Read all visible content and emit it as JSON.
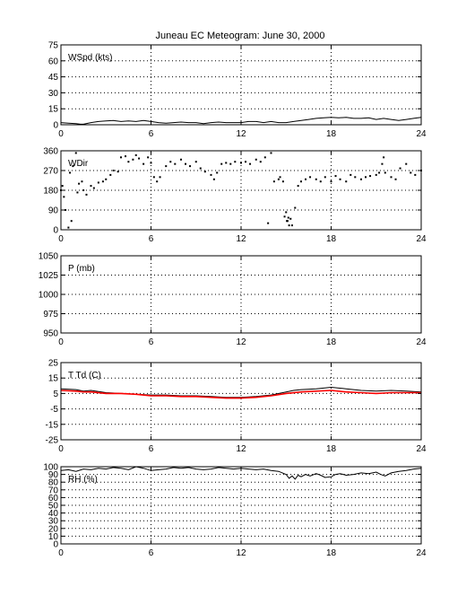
{
  "title": "Juneau EC Meteogram:       June 30, 2000",
  "colors": {
    "background": "#ffffff",
    "axes": "#000000",
    "grid": "#000000",
    "temperature": "#000000",
    "dewpoint": "#ff0000"
  },
  "chart_data": [
    {
      "type": "line",
      "id": "wspd",
      "label": "WSpd (kts)",
      "xlim": [
        0,
        24
      ],
      "xticks": [
        0,
        6,
        12,
        18,
        24
      ],
      "ylim": [
        0,
        75
      ],
      "yticks": [
        0,
        15,
        30,
        45,
        60,
        75
      ],
      "grid": true,
      "series": [
        {
          "color": "#000000",
          "style": "line",
          "x": [
            0,
            0.5,
            1,
            1.3,
            1.5,
            2,
            2.5,
            3,
            3.5,
            4,
            4.5,
            5,
            5.5,
            6,
            6.5,
            7,
            7.5,
            8,
            8.5,
            9,
            9.5,
            10,
            10.5,
            11,
            11.5,
            12,
            12.5,
            13,
            13.5,
            14,
            14.5,
            15,
            15.5,
            16,
            16.5,
            17,
            17.5,
            18,
            18.5,
            19,
            19.5,
            20,
            20.5,
            21,
            21.5,
            22,
            22.5,
            23,
            23.5,
            24
          ],
          "y": [
            2,
            1.5,
            1,
            0.5,
            0.5,
            2,
            3,
            3.5,
            4,
            3,
            3.5,
            3,
            4,
            3,
            2,
            1.5,
            2,
            2.5,
            2,
            2,
            1,
            2,
            2.5,
            2,
            2,
            2,
            3,
            3,
            2,
            3,
            2,
            2,
            3,
            4,
            5,
            6,
            6.5,
            7,
            6.5,
            7,
            6,
            6,
            6.5,
            5,
            6,
            5,
            4,
            5,
            6,
            7
          ]
        }
      ]
    },
    {
      "type": "scatter",
      "id": "wdir",
      "label": "WDir",
      "xlim": [
        0,
        24
      ],
      "xticks": [
        0,
        6,
        12,
        18,
        24
      ],
      "ylim": [
        0,
        360
      ],
      "yticks": [
        0,
        90,
        180,
        270,
        360
      ],
      "grid": true,
      "series": [
        {
          "color": "#000000",
          "style": "dots",
          "x": [
            0,
            0.1,
            0.2,
            0.3,
            0.5,
            0.7,
            1,
            1.2,
            1.4,
            1.5,
            1.7,
            2,
            2.2,
            2.5,
            2.8,
            3,
            3.3,
            3.5,
            3.8,
            4,
            4.3,
            4.5,
            4.8,
            5,
            5.2,
            5.5,
            5.8,
            6,
            6.2,
            6.4,
            6.6,
            7,
            7.3,
            7.6,
            8,
            8.3,
            8.6,
            9,
            9.3,
            9.6,
            10,
            10.2,
            10.4,
            10.7,
            11,
            11.3,
            11.6,
            12,
            12.3,
            12.6,
            13,
            13.3,
            13.6,
            14,
            14.2,
            14.5,
            14.6,
            14.8,
            15,
            15.1,
            15.2,
            15.3,
            15.4,
            15.6,
            15.8,
            16,
            16.3,
            16.6,
            17,
            17.3,
            17.6,
            18,
            18.3,
            18.6,
            19,
            19.3,
            19.6,
            20,
            20.3,
            20.6,
            21,
            21.2,
            21.4,
            21.6,
            22,
            22.3,
            22.6,
            23,
            23.3,
            23.6,
            24,
            0.6,
            0.8,
            1.1,
            13.8,
            14.9,
            15.05,
            15.15,
            21.5
          ],
          "y": [
            180,
            200,
            150,
            90,
            10,
            40,
            350,
            210,
            220,
            180,
            160,
            200,
            190,
            215,
            220,
            230,
            250,
            270,
            265,
            330,
            335,
            310,
            320,
            340,
            325,
            300,
            330,
            305,
            240,
            220,
            240,
            290,
            310,
            300,
            320,
            300,
            290,
            310,
            280,
            265,
            250,
            230,
            260,
            300,
            305,
            300,
            310,
            305,
            310,
            300,
            320,
            310,
            330,
            350,
            220,
            230,
            240,
            220,
            80,
            40,
            20,
            50,
            20,
            100,
            200,
            220,
            230,
            240,
            230,
            220,
            240,
            220,
            245,
            230,
            220,
            250,
            240,
            230,
            240,
            245,
            250,
            260,
            300,
            260,
            240,
            230,
            280,
            300,
            260,
            250,
            270,
            260,
            290,
            170,
            30,
            60,
            40,
            55,
            330
          ]
        }
      ]
    },
    {
      "type": "line",
      "id": "pres",
      "label": "P (mb)",
      "xlim": [
        0,
        24
      ],
      "xticks": [
        0,
        6,
        12,
        18,
        24
      ],
      "ylim": [
        950,
        1050
      ],
      "yticks": [
        950,
        975,
        1000,
        1025,
        1050
      ],
      "grid": true,
      "series": []
    },
    {
      "type": "line",
      "id": "temp",
      "label": "T Td (C)",
      "xlim": [
        0,
        24
      ],
      "xticks": [
        0,
        6,
        12,
        18,
        24
      ],
      "ylim": [
        -25,
        25
      ],
      "yticks": [
        -25,
        -15,
        -5,
        5,
        15,
        25
      ],
      "grid": true,
      "series": [
        {
          "color": "#000000",
          "style": "line",
          "x": [
            0,
            1,
            1.5,
            2,
            3,
            4,
            5,
            6,
            7,
            8,
            9,
            10,
            11,
            12,
            13,
            14,
            15,
            15.5,
            16,
            17,
            18,
            19,
            20,
            21,
            22,
            23,
            24
          ],
          "y": [
            8,
            7.5,
            6.5,
            7,
            5.5,
            5,
            4.5,
            4,
            4,
            3.5,
            3.5,
            3,
            2.5,
            2.5,
            3,
            4,
            6,
            7,
            7.5,
            8,
            9,
            8,
            7,
            6.5,
            7,
            6.5,
            6
          ]
        },
        {
          "color": "#ff0000",
          "style": "line",
          "x": [
            0,
            1,
            1.5,
            2,
            3,
            4,
            5,
            6,
            7,
            8,
            9,
            10,
            11,
            12,
            13,
            14,
            15,
            16,
            17,
            18,
            19,
            20,
            21,
            22,
            23,
            24
          ],
          "y": [
            7,
            6.5,
            6,
            6,
            5,
            5,
            4.5,
            3.5,
            3.5,
            3,
            3,
            2.5,
            2,
            2,
            2.5,
            3.5,
            5,
            6,
            6.5,
            7,
            6,
            5.5,
            5,
            5.5,
            5.5,
            5.5
          ]
        }
      ]
    },
    {
      "type": "line",
      "id": "rh",
      "label": "RH (%)",
      "xlim": [
        0,
        24
      ],
      "xticks": [
        0,
        6,
        12,
        18,
        24
      ],
      "ylim": [
        0,
        100
      ],
      "yticks": [
        0,
        10,
        20,
        30,
        40,
        50,
        60,
        70,
        80,
        90,
        100
      ],
      "grid": true,
      "series": [
        {
          "color": "#000000",
          "style": "line",
          "x": [
            0,
            0.5,
            1,
            1.5,
            2,
            2.5,
            3,
            3.5,
            4,
            4.5,
            5,
            5.5,
            6,
            6.5,
            7,
            7.5,
            8,
            8.5,
            9,
            9.5,
            10,
            10.5,
            11,
            11.5,
            12,
            12.5,
            13,
            13.5,
            14,
            14.5,
            15,
            15.2,
            15.4,
            15.6,
            15.8,
            16,
            16.3,
            16.6,
            17,
            17.3,
            17.6,
            18,
            18.3,
            18.6,
            19,
            19.5,
            20,
            20.5,
            21,
            21.3,
            21.6,
            22,
            22.5,
            23,
            23.5,
            24
          ],
          "y": [
            95,
            96,
            94,
            97,
            96,
            98,
            97,
            99,
            98,
            96,
            100,
            98,
            95,
            96,
            97,
            99,
            98,
            99,
            97,
            96,
            97,
            99,
            98,
            97,
            98,
            97,
            96,
            97,
            95,
            94,
            90,
            85,
            88,
            84,
            89,
            87,
            90,
            88,
            91,
            89,
            86,
            87,
            90,
            91,
            89,
            90,
            92,
            91,
            93,
            90,
            88,
            92,
            94,
            95,
            97,
            98
          ]
        }
      ]
    }
  ]
}
